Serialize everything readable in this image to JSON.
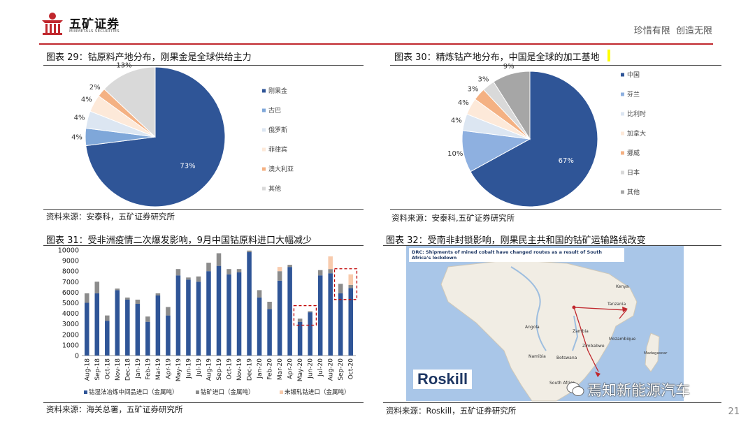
{
  "header": {
    "brand": "五矿证券",
    "brand_sub": "MINMETALS SECURITIES",
    "slogan": "珍惜有限  创造无限"
  },
  "page_number": "21",
  "colors": {
    "accent_red": "#c0272d",
    "navy": "#2f5597"
  },
  "panels": {
    "p29": {
      "title": "图表 29：钴原料产地分布，刚果金是全球供给主力",
      "source": "资料来源：安泰科，五矿证券研究所"
    },
    "p30": {
      "title": "图表 30：精炼钴产地分布，中国是全球的加工基地",
      "source": "资料来源：安泰科,五矿证券研究所"
    },
    "p31": {
      "title": "图表 31：受非洲疫情二次爆发影响，9月中国钴原料进口大幅减少",
      "source": "资料来源：海关总署，五矿证券研究所"
    },
    "p32": {
      "title": "图表 32：受南非封锁影响，刚果民主共和国的钴矿运输路线改变",
      "source": "资料来源：Roskill，五矿证券研究所"
    }
  },
  "map": {
    "caption": "DRC: Shipments of mined cobalt have changed routes as a result of South Africa's lockdown",
    "logo": "Roskill",
    "watermark": "焉知新能源汽车",
    "labels": [
      "Tanzania",
      "Zambia",
      "Zimbabwe",
      "Mozambique",
      "Namibia",
      "Botswana",
      "South Africa",
      "Angola",
      "Madagascar",
      "Kenya"
    ]
  },
  "chart_data": [
    {
      "type": "pie",
      "title": "",
      "labels": [
        "刚果金",
        "古巴",
        "俄罗斯",
        "菲律宾",
        "澳大利亚",
        "其他"
      ],
      "values": [
        73,
        4,
        4,
        4,
        2,
        13
      ],
      "value_labels": [
        "73%",
        "4%",
        "4%",
        "4%",
        "2%",
        "13%"
      ],
      "colors": [
        "#2f5597",
        "#7fa7d9",
        "#dce6f2",
        "#fde9d9",
        "#f4b183",
        "#d9d9d9"
      ],
      "legend_position": "right"
    },
    {
      "type": "pie",
      "title": "",
      "labels": [
        "中国",
        "芬兰",
        "比利时",
        "加拿大",
        "挪威",
        "日本",
        "其他"
      ],
      "values": [
        67,
        10,
        4,
        4,
        3,
        3,
        9
      ],
      "value_labels": [
        "67%",
        "10%",
        "4%",
        "4%",
        "3%",
        "3%",
        "9%"
      ],
      "colors": [
        "#2f5597",
        "#8eb0e0",
        "#dce6f2",
        "#fde9d9",
        "#f4b183",
        "#d9d9d9",
        "#a6a6a6"
      ],
      "legend_position": "right"
    },
    {
      "type": "bar",
      "stacked": true,
      "categories": [
        "Aug-18",
        "Sep-18",
        "Oct-18",
        "Nov-18",
        "Dec-18",
        "Jan-19",
        "Feb-19",
        "Mar-19",
        "Apr-19",
        "May-19",
        "Jun-19",
        "Jul-19",
        "Aug-19",
        "Sep-19",
        "Oct-19",
        "Nov-19",
        "Dec-19",
        "Jan-20",
        "Feb-20",
        "Mar-20",
        "Apr-20",
        "May-20",
        "Jun-20",
        "Jul-20",
        "Aug-20",
        "Sep-20",
        "Oct-20"
      ],
      "series": [
        {
          "name": "钴湿法冶炼中间品进口（金属吨）",
          "color": "#2f5597",
          "values": [
            5000,
            5900,
            3300,
            6200,
            5300,
            4900,
            3200,
            5700,
            3800,
            7600,
            7200,
            7000,
            8000,
            8500,
            7700,
            7900,
            9800,
            5500,
            4400,
            7100,
            8400,
            3200,
            4100,
            7600,
            7800,
            5900,
            6400
          ]
        },
        {
          "name": "钴矿进口（金属吨）",
          "color": "#8c8c8c",
          "values": [
            900,
            1100,
            500,
            150,
            200,
            400,
            500,
            200,
            800,
            600,
            200,
            500,
            800,
            1200,
            500,
            300,
            150,
            700,
            700,
            900,
            200,
            300,
            100,
            500,
            400,
            900,
            300
          ]
        },
        {
          "name": "未锻轧钴进口（金属吨）",
          "color": "#f8cbad",
          "values": [
            0,
            0,
            0,
            0,
            0,
            0,
            0,
            0,
            0,
            0,
            0,
            0,
            0,
            0,
            0,
            0,
            0,
            0,
            0,
            400,
            0,
            0,
            0,
            0,
            1200,
            0,
            1000
          ]
        }
      ],
      "ylim": [
        0,
        10000
      ],
      "yticks": [
        0,
        1000,
        2000,
        3000,
        4000,
        5000,
        6000,
        7000,
        8000,
        9000,
        10000
      ],
      "highlight_categories": [
        "May-20",
        "Jun-20",
        "Sep-20",
        "Oct-20"
      ],
      "legend_position": "bottom"
    }
  ]
}
